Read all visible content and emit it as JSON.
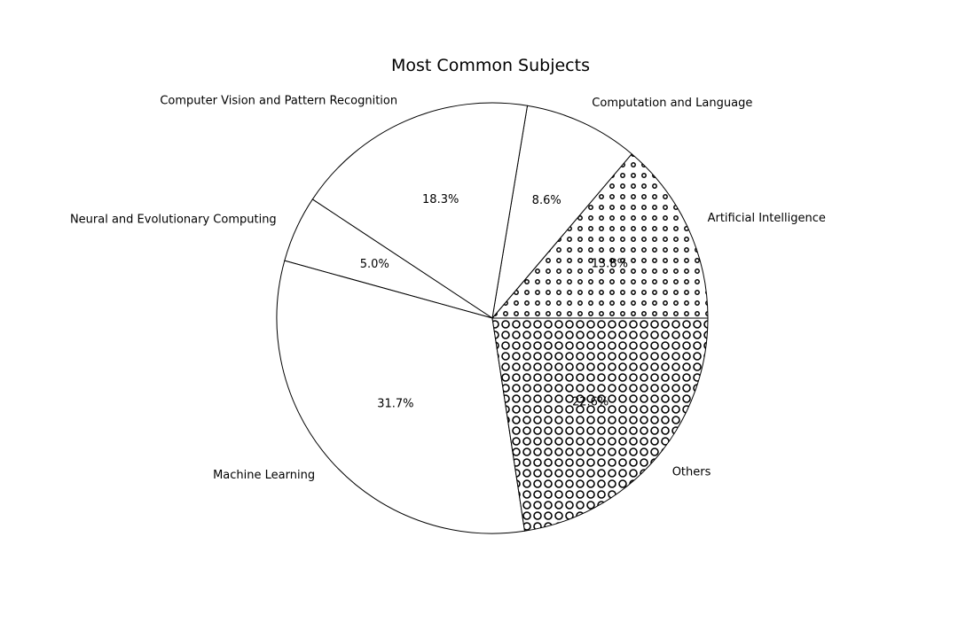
{
  "chart_data": {
    "type": "pie",
    "title": "Most Common Subjects",
    "start_angle_deg": 0,
    "direction": "counterclockwise",
    "slices": [
      {
        "label": "Artificial Intelligence",
        "value": 13.8,
        "pct_label": "13.8%",
        "hatch": "small-dots"
      },
      {
        "label": "Computation and Language",
        "value": 8.6,
        "pct_label": "8.6%",
        "hatch": "none"
      },
      {
        "label": "Computer Vision and Pattern Recognition",
        "value": 18.3,
        "pct_label": "18.3%",
        "hatch": "none"
      },
      {
        "label": "Neural and Evolutionary Computing",
        "value": 5.0,
        "pct_label": "5.0%",
        "hatch": "none"
      },
      {
        "label": "Machine Learning",
        "value": 31.7,
        "pct_label": "31.7%",
        "hatch": "none"
      },
      {
        "label": "Others",
        "value": 22.6,
        "pct_label": "22.6%",
        "hatch": "circles"
      }
    ],
    "colors": {
      "fill": "#ffffff",
      "edge": "#000000",
      "text": "#000000"
    }
  }
}
